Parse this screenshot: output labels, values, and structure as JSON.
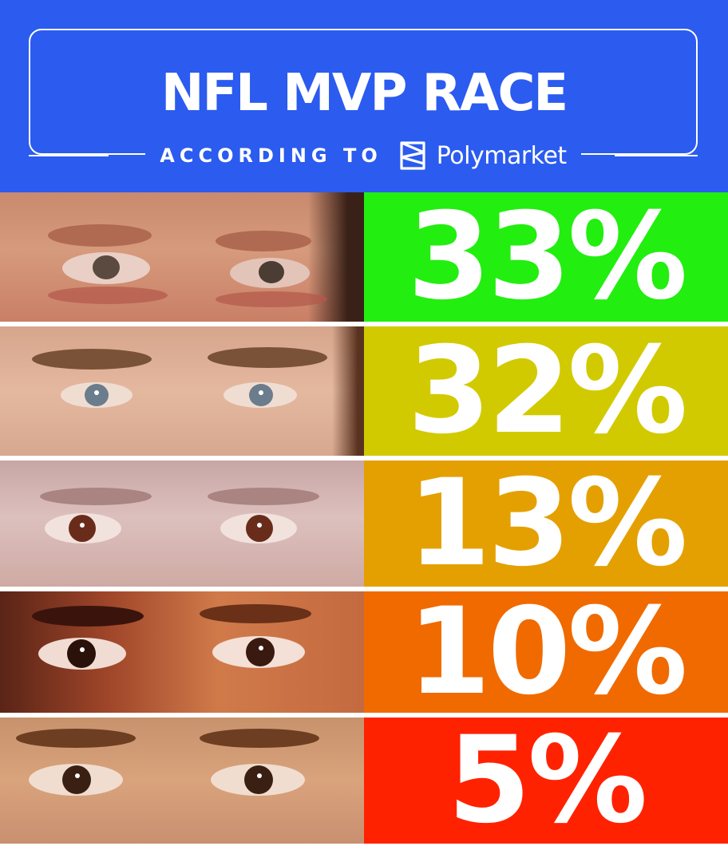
{
  "header": {
    "title": "NFL MVP RACE",
    "according": "ACCORDING TO",
    "brand": "Polymarket",
    "brand_icon": "polymarket-logo-icon"
  },
  "rows": [
    {
      "percent": "33%",
      "value": 33,
      "color": "#22ee10"
    },
    {
      "percent": "32%",
      "value": 32,
      "color": "#d2ca00"
    },
    {
      "percent": "13%",
      "value": 13,
      "color": "#e4a000"
    },
    {
      "percent": "10%",
      "value": 10,
      "color": "#f06a00"
    },
    {
      "percent": "5%",
      "value": 5,
      "color": "#ff2200"
    }
  ],
  "colors": {
    "header_bg": "#2b5bef",
    "text": "#ffffff"
  }
}
